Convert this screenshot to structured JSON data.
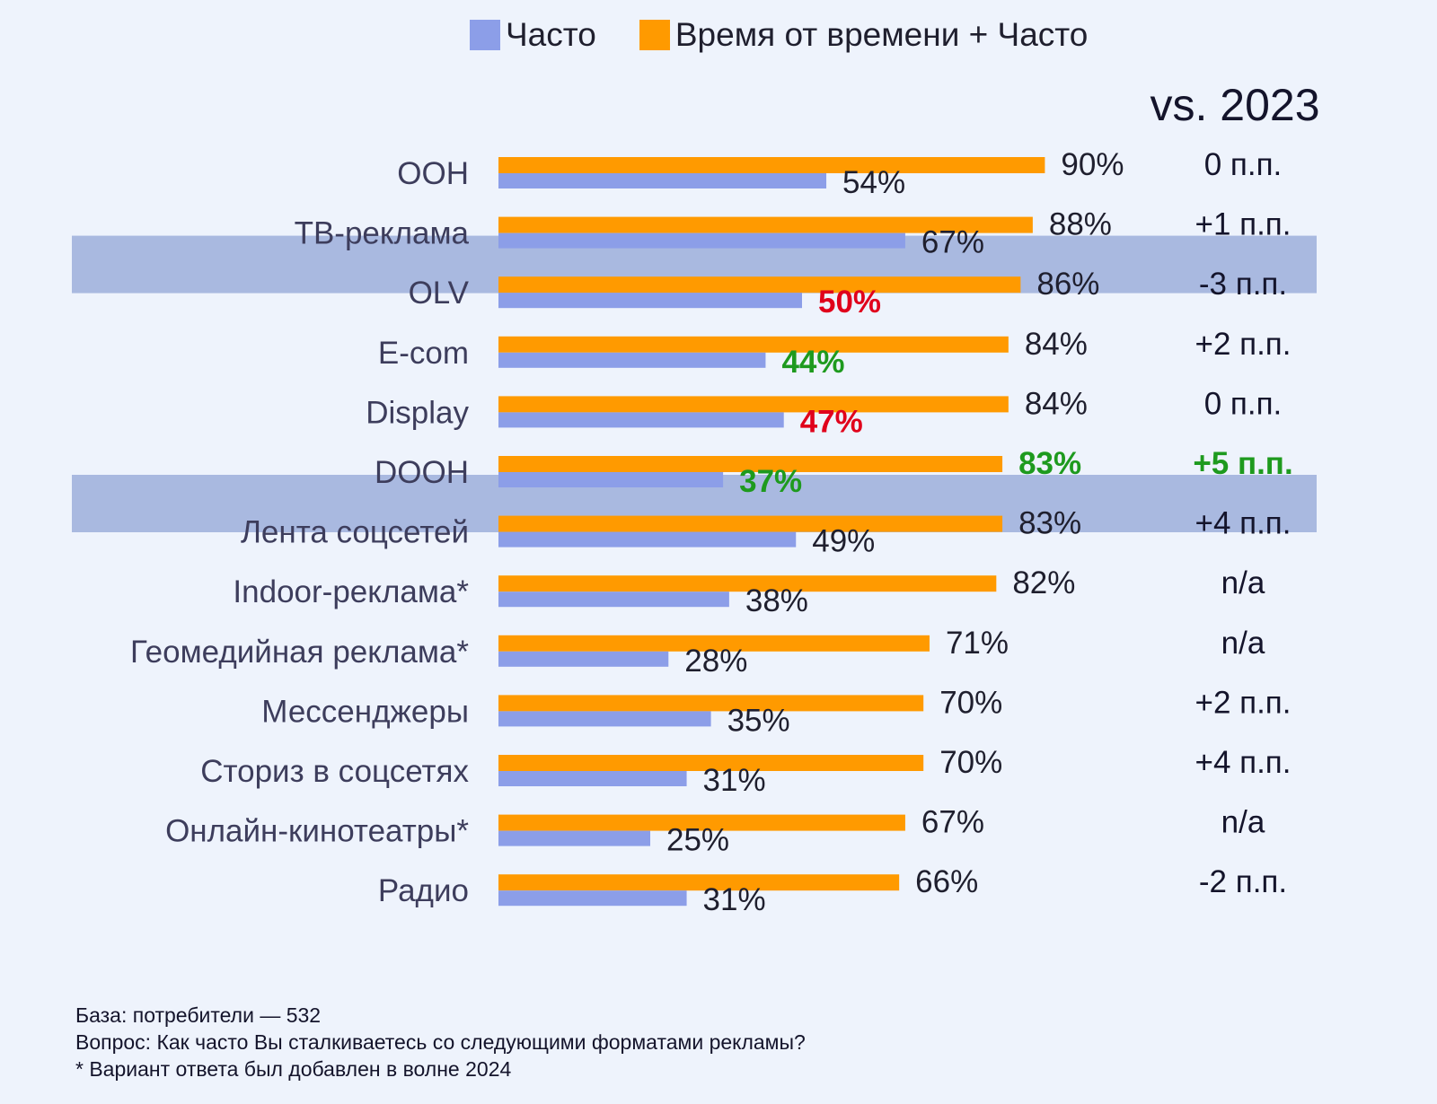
{
  "legend": [
    {
      "label": "Часто",
      "color": "#8c9ee8"
    },
    {
      "label": "Время от времени + Часто",
      "color": "#ff9a00"
    }
  ],
  "comparison_header": "vs. 2023",
  "chart_data": {
    "type": "bar",
    "orientation": "horizontal",
    "title": "",
    "categories": [
      "ООН",
      "ТВ-реклама",
      "OLV",
      "E-com",
      "Display",
      "DOOH",
      "Лента соцсетей",
      "Indoor-реклама*",
      "Геомедийная реклама*",
      "Мессенджеры",
      "Сториз в соцсетях",
      "Онлайн-кинотеатры*",
      "Радио"
    ],
    "series": [
      {
        "name": "Часто",
        "color": "#8c9ee8",
        "values": [
          54,
          67,
          50,
          44,
          47,
          37,
          49,
          38,
          28,
          35,
          31,
          25,
          31
        ]
      },
      {
        "name": "Время от времени + Часто",
        "color": "#ff9a00",
        "values": [
          90,
          88,
          86,
          84,
          84,
          83,
          83,
          82,
          71,
          70,
          70,
          67,
          66
        ]
      }
    ],
    "value_labels": {
      "Часто": [
        "54%",
        "67%",
        "50%",
        "44%",
        "47%",
        "37%",
        "49%",
        "38%",
        "28%",
        "35%",
        "31%",
        "25%",
        "31%"
      ],
      "Время от времени + Часто": [
        "90%",
        "88%",
        "86%",
        "84%",
        "84%",
        "83%",
        "83%",
        "82%",
        "71%",
        "70%",
        "70%",
        "67%",
        "66%"
      ]
    },
    "label_status": {
      "Часто": [
        "",
        "",
        "down",
        "up",
        "down",
        "up",
        "",
        "",
        "",
        "",
        "",
        "",
        ""
      ],
      "Время от времени + Часто": [
        "",
        "",
        "",
        "",
        "",
        "up",
        "",
        "",
        "",
        "",
        "",
        "",
        ""
      ]
    },
    "vs_2023": [
      "0 п.п.",
      "+1 п.п.",
      "-3 п.п.",
      "+2 п.п.",
      "0 п.п.",
      "+5 п.п.",
      "+4 п.п.",
      "n/a",
      "n/a",
      "+2 п.п.",
      "+4 п.п.",
      "n/a",
      "-2 п.п."
    ],
    "vs_2023_status": [
      "",
      "",
      "",
      "",
      "",
      "up",
      "",
      "",
      "",
      "",
      "",
      "",
      ""
    ],
    "highlighted_rows": [
      1,
      5
    ],
    "xlim": [
      0,
      100
    ]
  },
  "colors": {
    "up": "#1e9a1e",
    "down": "#e0001b",
    "highlight": "#a9b9e0",
    "label": "#3d3d5c",
    "value": "#1f1f2e"
  },
  "footnotes": [
    "База: потребители — 532",
    "Вопрос: Как часто Вы сталкиваетесь со следующими форматами рекламы?",
    "* Вариант ответа был добавлен в волне 2024"
  ]
}
